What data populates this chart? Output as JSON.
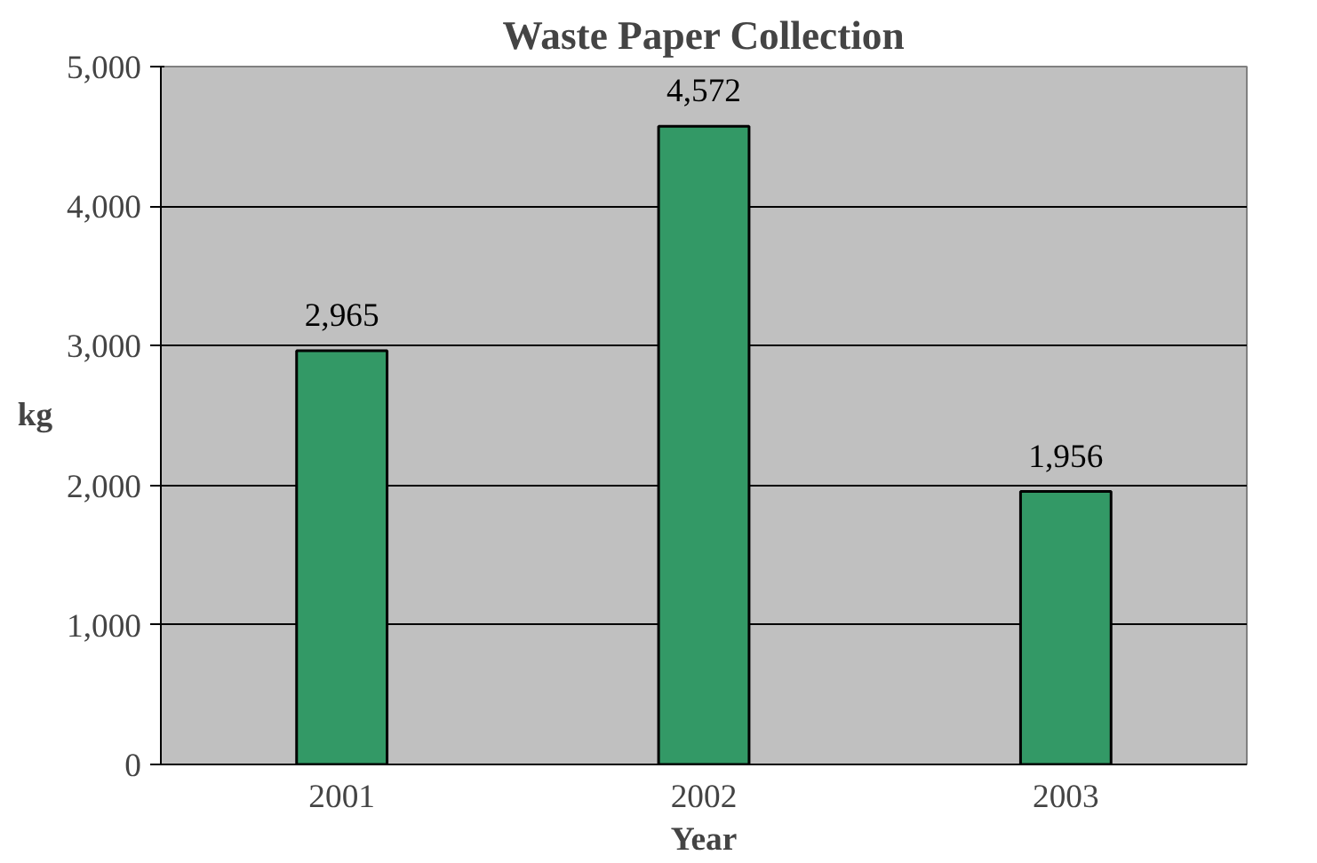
{
  "chart_data": {
    "type": "bar",
    "title": "Waste Paper Collection",
    "xlabel": "Year",
    "ylabel": "kg",
    "categories": [
      "2001",
      "2002",
      "2003"
    ],
    "values": [
      2965,
      4572,
      1956
    ],
    "value_labels": [
      "2,965",
      "4,572",
      "1,956"
    ],
    "color": "#339966",
    "ylim": [
      0,
      5000
    ],
    "yticks": [
      {
        "value": 0,
        "label": "0"
      },
      {
        "value": 1000,
        "label": "1,000"
      },
      {
        "value": 2000,
        "label": "2,000"
      },
      {
        "value": 3000,
        "label": "3,000"
      },
      {
        "value": 4000,
        "label": "4,000"
      },
      {
        "value": 5000,
        "label": "5,000"
      }
    ],
    "grid": "y"
  }
}
